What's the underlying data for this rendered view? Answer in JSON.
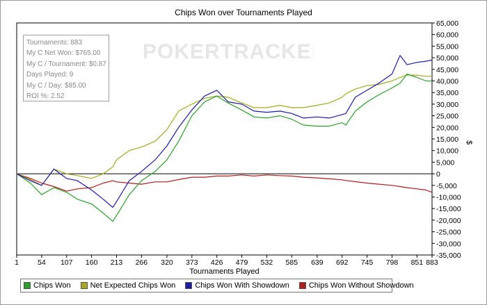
{
  "chart_data": {
    "type": "line",
    "title": "Chips Won over Tournaments Played",
    "xlabel": "Tournaments Played",
    "ylabel": "$",
    "xlim": [
      1,
      883
    ],
    "ylim": [
      -35000,
      65000
    ],
    "x_ticks": [
      "1",
      "54",
      "107",
      "160",
      "213",
      "266",
      "320",
      "373",
      "426",
      "479",
      "532",
      "585",
      "639",
      "692",
      "745",
      "798",
      "851",
      "883"
    ],
    "y_ticks": [
      "65,000",
      "60,000",
      "55,000",
      "50,000",
      "45,000",
      "40,000",
      "35,000",
      "30,000",
      "25,000",
      "20,000",
      "15,000",
      "10,000",
      "5,000",
      "0",
      "-5,000",
      "-10,000",
      "-15,000",
      "-20,000",
      "-25,000",
      "-30,000",
      "-35,000"
    ],
    "grid": false,
    "legend_position": "bottom",
    "x": [
      1,
      30,
      54,
      80,
      107,
      130,
      160,
      185,
      205,
      213,
      240,
      266,
      295,
      320,
      345,
      373,
      400,
      426,
      450,
      479,
      505,
      532,
      560,
      585,
      610,
      639,
      665,
      692,
      700,
      720,
      745,
      770,
      798,
      815,
      830,
      851,
      870,
      883
    ],
    "series": [
      {
        "name": "Chips Won",
        "color": "#2ca02c",
        "values": [
          0,
          -4000,
          -9000,
          -6000,
          -8000,
          -11000,
          -13000,
          -17000,
          -20500,
          -18000,
          -9000,
          -3000,
          1000,
          6000,
          14000,
          25000,
          31000,
          33500,
          30500,
          27500,
          24500,
          24000,
          25000,
          23500,
          21000,
          20500,
          20500,
          22000,
          21000,
          27000,
          31000,
          34000,
          37000,
          39000,
          43000,
          41500,
          40000,
          40000
        ]
      },
      {
        "name": "Net Expected Chips Won",
        "color": "#a8a820",
        "values": [
          0,
          -2500,
          -5000,
          2000,
          0,
          -800,
          -2000,
          0,
          3000,
          6000,
          10000,
          11500,
          14000,
          19000,
          27000,
          30000,
          32500,
          33500,
          33000,
          30500,
          28500,
          28500,
          29500,
          28500,
          28500,
          29500,
          30500,
          33000,
          34500,
          36500,
          38000,
          38500,
          40000,
          41500,
          42500,
          42500,
          42000,
          42000
        ]
      },
      {
        "name": "Chips Won With Showdown",
        "color": "#1c1ca8",
        "values": [
          0,
          -3000,
          -5000,
          2000,
          -2000,
          -3000,
          -7000,
          -11000,
          -14500,
          -12000,
          -3000,
          1000,
          6000,
          12000,
          20000,
          27500,
          33500,
          36000,
          31000,
          30000,
          27000,
          26500,
          27000,
          26000,
          24000,
          24500,
          24000,
          25500,
          26000,
          33000,
          36000,
          39000,
          43000,
          51000,
          47000,
          48000,
          48500,
          49000
        ]
      },
      {
        "name": "Chips Won Without Showdown",
        "color": "#b01c1c",
        "values": [
          0,
          -2000,
          -4000,
          -5500,
          -7500,
          -6500,
          -6000,
          -4000,
          -3000,
          -3500,
          -4000,
          -4500,
          -3500,
          -3500,
          -2500,
          -1500,
          -1500,
          -1000,
          -1000,
          -500,
          -1000,
          -500,
          -800,
          -1000,
          -1500,
          -1800,
          -2200,
          -2600,
          -2900,
          -3400,
          -4000,
          -4500,
          -5000,
          -5500,
          -6000,
          -6500,
          -7000,
          -8000
        ]
      }
    ]
  },
  "stats": [
    "Tournaments: 883",
    "My C Net Won: $765.00",
    "My C / Tournament: $0.87",
    "Days Played: 9",
    "My C / Day: $85.00",
    "ROI %: 2.52"
  ],
  "watermark": "POKERTRACKER"
}
